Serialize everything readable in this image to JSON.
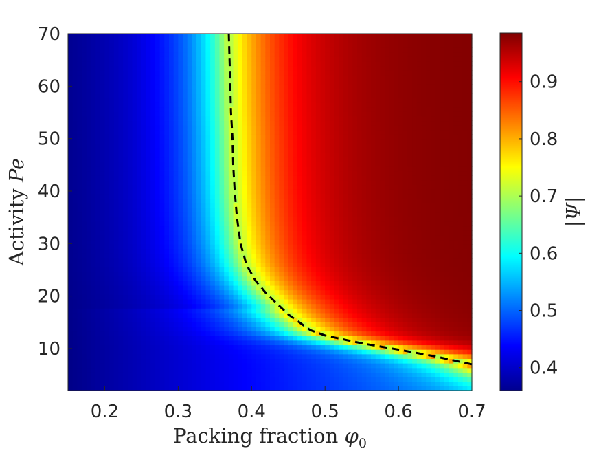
{
  "chart_data": {
    "type": "heatmap",
    "title": "",
    "xlabel": "Packing fraction",
    "xlabel_symbol": "φ",
    "xlabel_subscript": "0",
    "ylabel": "Activity",
    "ylabel_symbol": "Pe",
    "xlim": [
      0.15,
      0.7
    ],
    "ylim": [
      2,
      70
    ],
    "x_ticks": [
      0.2,
      0.3,
      0.4,
      0.5,
      0.6,
      0.7
    ],
    "x_tick_labels": [
      "0.2",
      "0.3",
      "0.4",
      "0.5",
      "0.6",
      "0.7"
    ],
    "y_ticks": [
      10,
      20,
      30,
      40,
      50,
      60,
      70
    ],
    "y_tick_labels": [
      "10",
      "20",
      "30",
      "40",
      "50",
      "60",
      "70"
    ],
    "colormap": "jet",
    "colorbar": {
      "label": "|Ψ|",
      "range": [
        0.36,
        0.985
      ],
      "ticks": [
        0.4,
        0.5,
        0.6,
        0.7,
        0.8,
        0.9
      ],
      "tick_labels": [
        "0.4",
        "0.5",
        "0.6",
        "0.7",
        "0.8",
        "0.9"
      ]
    },
    "boundary_line": {
      "style": "dashed",
      "color": "#000000",
      "points": [
        [
          0.7,
          7
        ],
        [
          0.65,
          8.5
        ],
        [
          0.6,
          9.8
        ],
        [
          0.55,
          11
        ],
        [
          0.5,
          12.5
        ],
        [
          0.48,
          13.5
        ],
        [
          0.47,
          14.5
        ],
        [
          0.45,
          16.5
        ],
        [
          0.435,
          18.5
        ],
        [
          0.42,
          20.5
        ],
        [
          0.405,
          23
        ],
        [
          0.393,
          26
        ],
        [
          0.385,
          30
        ],
        [
          0.38,
          35
        ],
        [
          0.377,
          40
        ],
        [
          0.375,
          45
        ],
        [
          0.374,
          50
        ],
        [
          0.372,
          55
        ],
        [
          0.371,
          60
        ],
        [
          0.37,
          65
        ],
        [
          0.369,
          70
        ]
      ]
    },
    "field_model": {
      "description": "order parameter |Psi| over (phi0, Pe); low left, high upper-right, sharp rise across boundary_line",
      "low_value": 0.37,
      "high_value": 0.985,
      "transition_value": 0.7
    }
  }
}
